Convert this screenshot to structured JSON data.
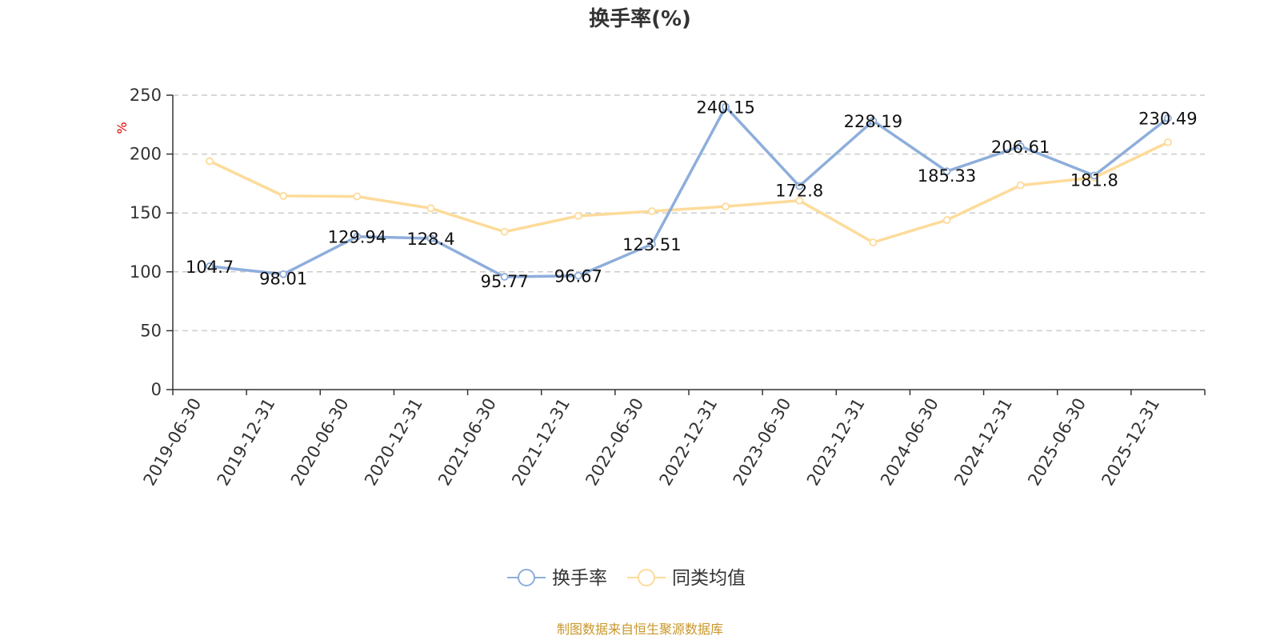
{
  "chart_data": {
    "type": "line",
    "title": "换手率(%)",
    "ylabel": "%",
    "xlabel": "",
    "ylim": [
      0,
      250
    ],
    "yticks": [
      0,
      50,
      100,
      150,
      200,
      250
    ],
    "grid": true,
    "legend_position": "bottom-center",
    "categories": [
      "2019-06-30",
      "2019-12-31",
      "2020-06-30",
      "2020-12-31",
      "2021-06-30",
      "2021-12-31",
      "2022-06-30",
      "2022-12-31",
      "2023-06-30",
      "2023-12-31",
      "2024-06-30",
      "2024-12-31",
      "2025-06-30",
      "2025-12-31"
    ],
    "series": [
      {
        "name": "换手率",
        "color": "#8eaedb",
        "show_labels": true,
        "values": [
          104.7,
          98.01,
          129.94,
          128.4,
          95.77,
          96.67,
          123.51,
          240.15,
          172.8,
          228.19,
          185.33,
          206.61,
          181.8,
          230.49
        ],
        "labels": [
          "104.7",
          "98.01",
          "129.94",
          "128.4",
          "95.77",
          "96.67",
          "123.51",
          "240.15",
          "172.8",
          "228.19",
          "185.33",
          "206.61",
          "181.8",
          "230.49"
        ]
      },
      {
        "name": "同类均值",
        "color": "#fddb9a",
        "show_labels": false,
        "values": [
          194,
          164.5,
          164,
          154,
          134,
          147.5,
          151.5,
          155.5,
          160.5,
          125,
          144,
          173.5,
          180,
          210
        ]
      }
    ],
    "source": "制图数据来自恒生聚源数据库"
  }
}
